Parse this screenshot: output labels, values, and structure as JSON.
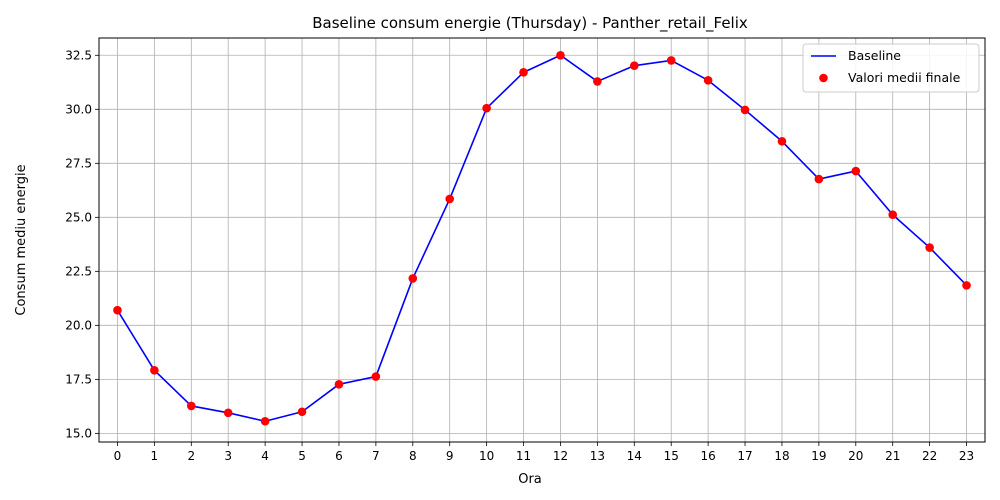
{
  "chart_data": {
    "type": "line",
    "title": "Baseline consum energie (Thursday) - Panther_retail_Felix",
    "xlabel": "Ora",
    "ylabel": "Consum mediu energie",
    "x": [
      0,
      1,
      2,
      3,
      4,
      5,
      6,
      7,
      8,
      9,
      10,
      11,
      12,
      13,
      14,
      15,
      16,
      17,
      18,
      19,
      20,
      21,
      22,
      23
    ],
    "x_tick_labels": [
      "0",
      "1",
      "2",
      "3",
      "4",
      "5",
      "6",
      "7",
      "8",
      "9",
      "10",
      "11",
      "12",
      "13",
      "14",
      "15",
      "16",
      "17",
      "18",
      "19",
      "20",
      "21",
      "22",
      "23"
    ],
    "xlim": [
      -0.5,
      23.5
    ],
    "ylim": [
      14.6,
      33.3
    ],
    "y_ticks": [
      15.0,
      17.5,
      20.0,
      22.5,
      25.0,
      27.5,
      30.0,
      32.5
    ],
    "y_tick_labels": [
      "15.0",
      "17.5",
      "20.0",
      "22.5",
      "25.0",
      "27.5",
      "30.0",
      "32.5"
    ],
    "grid": true,
    "legend_position": "upper right",
    "series": [
      {
        "name": "Baseline",
        "kind": "line",
        "color": "#0000ff",
        "values": [
          20.7,
          17.92,
          16.27,
          15.95,
          15.56,
          16.0,
          17.27,
          17.63,
          22.17,
          25.85,
          30.05,
          31.71,
          32.5,
          31.29,
          32.02,
          32.26,
          31.34,
          29.97,
          28.52,
          26.77,
          27.14,
          25.12,
          23.6,
          21.85
        ]
      },
      {
        "name": "Valori medii finale",
        "kind": "scatter",
        "color": "#ff0000",
        "values": [
          20.7,
          17.92,
          16.27,
          15.95,
          15.56,
          16.0,
          17.27,
          17.63,
          22.17,
          25.85,
          30.05,
          31.71,
          32.5,
          31.29,
          32.02,
          32.26,
          31.34,
          29.97,
          28.52,
          26.77,
          27.14,
          25.12,
          23.6,
          21.85
        ]
      }
    ]
  }
}
